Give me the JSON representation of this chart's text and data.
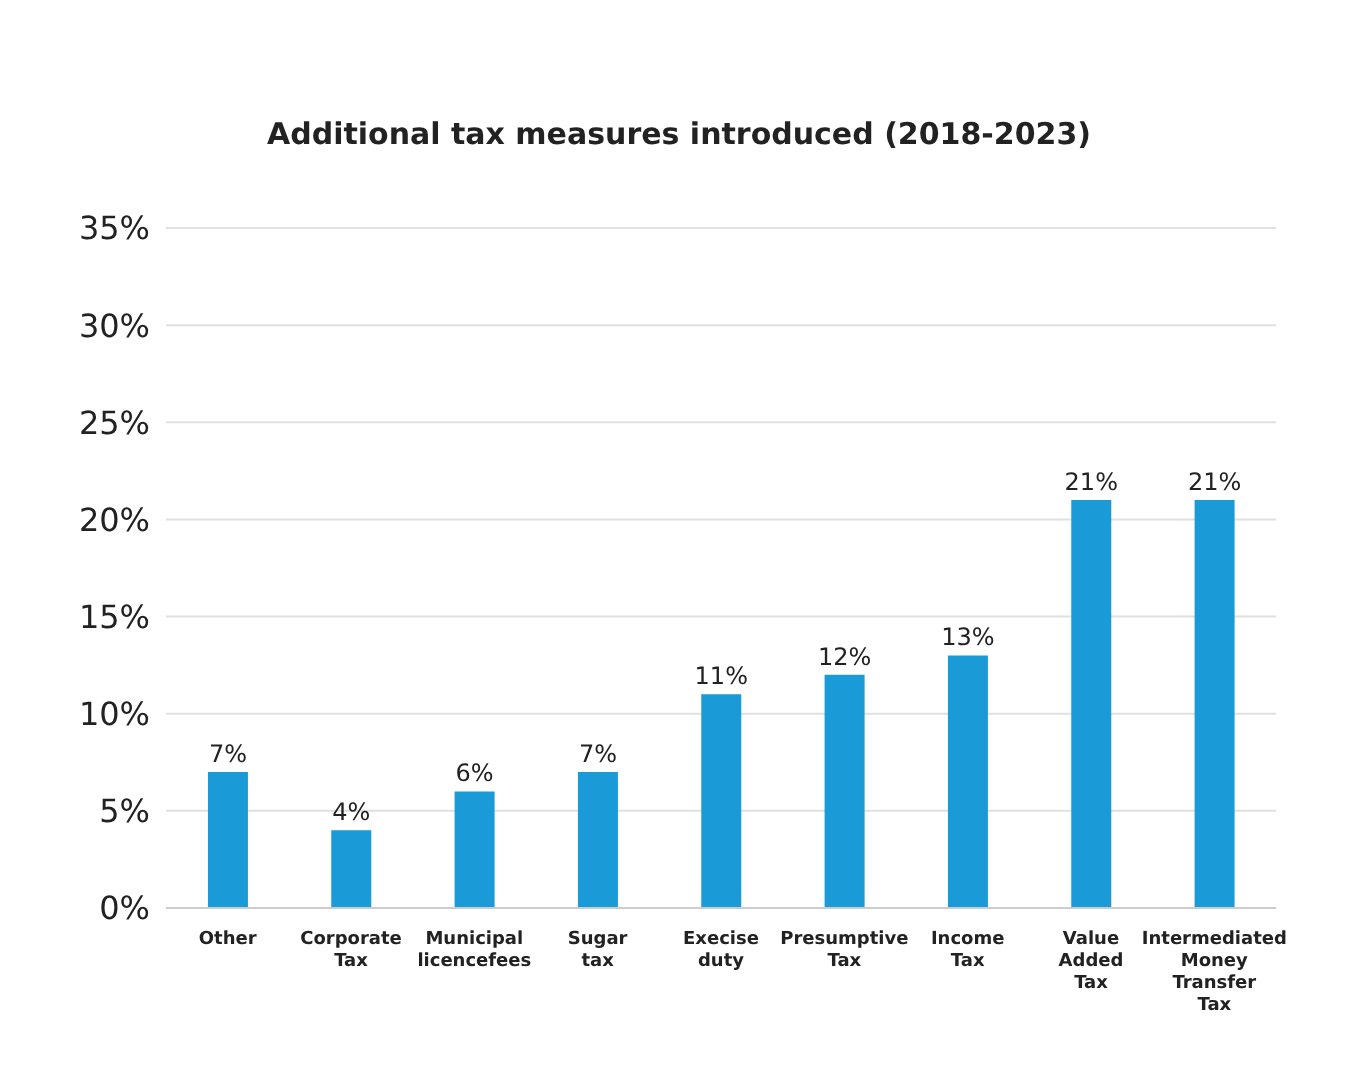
{
  "chart_data": {
    "type": "bar",
    "title": "Additional tax measures introduced (2018-2023)",
    "categories": [
      "Other",
      "Corporate Tax",
      "Municipal licencefees",
      "Sugar tax",
      "Execise duty",
      "Presumptive Tax",
      "Income Tax",
      "Value Added Tax",
      "Intermediated Money Transfer Tax"
    ],
    "values": [
      7,
      4,
      6,
      7,
      11,
      12,
      13,
      21,
      21
    ],
    "value_labels": [
      "7%",
      "4%",
      "6%",
      "7%",
      "11%",
      "12%",
      "13%",
      "21%",
      "21%"
    ],
    "color": "#1a9ad6",
    "ylim": [
      0,
      35
    ],
    "yticks": [
      {
        "value": 0,
        "label": "0%"
      },
      {
        "value": 5,
        "label": "5%"
      },
      {
        "value": 10,
        "label": "10%"
      },
      {
        "value": 15,
        "label": "15%"
      },
      {
        "value": 20,
        "label": "20%"
      },
      {
        "value": 25,
        "label": "25%"
      },
      {
        "value": 30,
        "label": "30%"
      },
      {
        "value": 35,
        "label": "35%"
      }
    ],
    "grid": "y",
    "legend": false
  }
}
